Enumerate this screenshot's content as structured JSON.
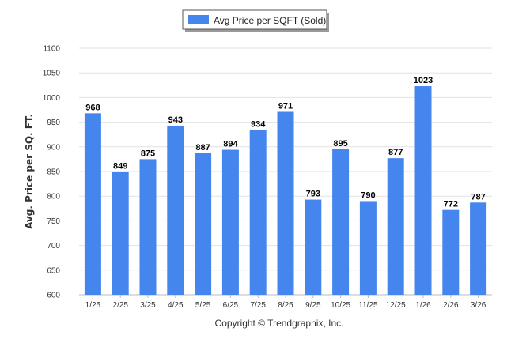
{
  "chart_data": {
    "type": "bar",
    "title": "",
    "xlabel": "",
    "ylabel": "Avg. Price per SQ. FT.",
    "ylim": [
      600,
      1100
    ],
    "yticks": [
      600,
      650,
      700,
      750,
      800,
      850,
      900,
      950,
      1000,
      1050,
      1100
    ],
    "grid": true,
    "legend_position": "top-center",
    "categories": [
      "1/25",
      "2/25",
      "3/25",
      "4/25",
      "5/25",
      "6/25",
      "7/25",
      "8/25",
      "9/25",
      "10/25",
      "11/25",
      "12/25",
      "1/26",
      "2/26",
      "3/26"
    ],
    "series": [
      {
        "name": "Avg Price per SQFT (Sold)",
        "color": "#4485ee",
        "values": [
          968,
          849,
          875,
          943,
          887,
          894,
          934,
          971,
          793,
          895,
          790,
          877,
          1023,
          772,
          787
        ]
      }
    ]
  },
  "footer": {
    "copyright": "Copyright © Trendgraphix, Inc."
  }
}
